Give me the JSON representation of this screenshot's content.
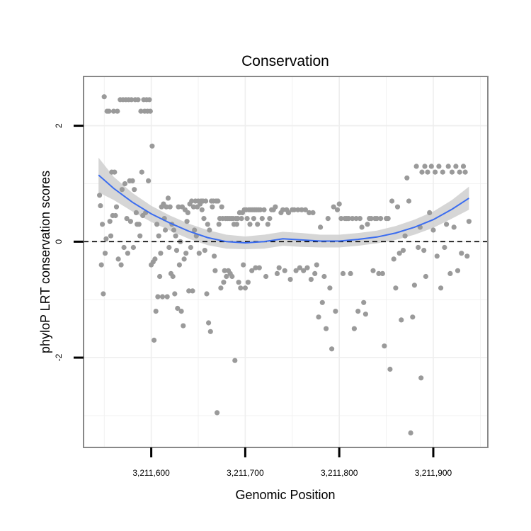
{
  "chart_data": {
    "type": "scatter",
    "title": "Conservation",
    "xlabel": "Genomic Position",
    "ylabel": "phyloP LRT conservation scores",
    "xlim": [
      3211528,
      3211958
    ],
    "ylim": [
      -3.55,
      2.85
    ],
    "x_ticks": [
      3211600,
      3211700,
      3211800,
      3211900
    ],
    "x_tick_labels": [
      "3,211,600",
      "3,211,700",
      "3,211,800",
      "3,211,900"
    ],
    "y_ticks": [
      -2,
      0,
      2
    ],
    "y_tick_labels": [
      "-2",
      "0",
      "2"
    ],
    "grid": true,
    "reference_line": {
      "y": 0,
      "style": "dashed"
    },
    "colors": {
      "points": "#9a9a9a",
      "smooth_line": "#3a6cf0",
      "ribbon": "#cfcfcf",
      "panel_border": "#888888",
      "grid": "#eeeeee"
    },
    "smooth_fit": {
      "x": [
        3211544,
        3211560,
        3211580,
        3211600,
        3211620,
        3211640,
        3211660,
        3211680,
        3211700,
        3211720,
        3211740,
        3211760,
        3211780,
        3211800,
        3211820,
        3211840,
        3211860,
        3211880,
        3211900,
        3211920,
        3211938
      ],
      "y": [
        1.15,
        0.92,
        0.68,
        0.48,
        0.32,
        0.18,
        0.07,
        0.0,
        -0.02,
        0.0,
        0.05,
        0.03,
        0.01,
        0.01,
        0.04,
        0.08,
        0.15,
        0.25,
        0.38,
        0.56,
        0.75
      ],
      "upper": [
        1.45,
        1.12,
        0.84,
        0.62,
        0.45,
        0.31,
        0.2,
        0.12,
        0.09,
        0.12,
        0.17,
        0.15,
        0.12,
        0.12,
        0.15,
        0.19,
        0.27,
        0.38,
        0.52,
        0.72,
        0.95
      ],
      "lower": [
        0.85,
        0.72,
        0.52,
        0.34,
        0.19,
        0.05,
        -0.06,
        -0.12,
        -0.13,
        -0.12,
        -0.07,
        -0.09,
        -0.1,
        -0.1,
        -0.07,
        -0.03,
        0.03,
        0.12,
        0.24,
        0.4,
        0.55
      ]
    },
    "points": [
      [
        3211545,
        0.8
      ],
      [
        3211546,
        0.62
      ],
      [
        3211547,
        -0.4
      ],
      [
        3211548,
        0.3
      ],
      [
        3211549,
        -0.9
      ],
      [
        3211550,
        2.5
      ],
      [
        3211551,
        -0.2
      ],
      [
        3211552,
        0.05
      ],
      [
        3211553,
        2.25
      ],
      [
        3211555,
        2.25
      ],
      [
        3211556,
        0.35
      ],
      [
        3211557,
        0.1
      ],
      [
        3211558,
        1.2
      ],
      [
        3211559,
        0.45
      ],
      [
        3211560,
        2.25
      ],
      [
        3211561,
        1.2
      ],
      [
        3211562,
        0.45
      ],
      [
        3211563,
        0.6
      ],
      [
        3211564,
        2.25
      ],
      [
        3211565,
        -0.3
      ],
      [
        3211567,
        2.45
      ],
      [
        3211568,
        -0.4
      ],
      [
        3211569,
        0.9
      ],
      [
        3211570,
        2.45
      ],
      [
        3211571,
        -0.1
      ],
      [
        3211572,
        1.0
      ],
      [
        3211573,
        2.45
      ],
      [
        3211574,
        0.4
      ],
      [
        3211575,
        -0.2
      ],
      [
        3211576,
        2.45
      ],
      [
        3211577,
        1.05
      ],
      [
        3211578,
        0.35
      ],
      [
        3211579,
        2.45
      ],
      [
        3211580,
        1.05
      ],
      [
        3211581,
        -0.1
      ],
      [
        3211582,
        0.9
      ],
      [
        3211583,
        2.45
      ],
      [
        3211584,
        0.5
      ],
      [
        3211585,
        0.3
      ],
      [
        3211586,
        2.45
      ],
      [
        3211587,
        0.3
      ],
      [
        3211588,
        0.1
      ],
      [
        3211589,
        2.25
      ],
      [
        3211590,
        1.2
      ],
      [
        3211591,
        0.45
      ],
      [
        3211592,
        2.45
      ],
      [
        3211593,
        2.25
      ],
      [
        3211594,
        0.5
      ],
      [
        3211595,
        2.45
      ],
      [
        3211596,
        2.25
      ],
      [
        3211597,
        1.05
      ],
      [
        3211598,
        2.45
      ],
      [
        3211599,
        2.25
      ],
      [
        3211600,
        -0.4
      ],
      [
        3211601,
        1.65
      ],
      [
        3211602,
        -0.35
      ],
      [
        3211603,
        -1.7
      ],
      [
        3211604,
        -0.3
      ],
      [
        3211605,
        -1.2
      ],
      [
        3211606,
        0.3
      ],
      [
        3211607,
        -0.95
      ],
      [
        3211608,
        0.1
      ],
      [
        3211609,
        -0.6
      ],
      [
        3211610,
        -0.2
      ],
      [
        3211611,
        0.6
      ],
      [
        3211612,
        -0.95
      ],
      [
        3211613,
        0.65
      ],
      [
        3211614,
        0.4
      ],
      [
        3211615,
        0.2
      ],
      [
        3211616,
        0.6
      ],
      [
        3211617,
        -0.95
      ],
      [
        3211618,
        0.75
      ],
      [
        3211619,
        -0.1
      ],
      [
        3211620,
        0.6
      ],
      [
        3211621,
        -0.55
      ],
      [
        3211622,
        0.3
      ],
      [
        3211623,
        -0.6
      ],
      [
        3211624,
        0.2
      ],
      [
        3211625,
        -0.9
      ],
      [
        3211626,
        0.1
      ],
      [
        3211627,
        -0.15
      ],
      [
        3211628,
        -1.15
      ],
      [
        3211629,
        0.6
      ],
      [
        3211630,
        -0.4
      ],
      [
        3211631,
        0.0
      ],
      [
        3211632,
        -1.2
      ],
      [
        3211633,
        0.6
      ],
      [
        3211634,
        -1.45
      ],
      [
        3211635,
        -0.3
      ],
      [
        3211636,
        0.55
      ],
      [
        3211637,
        -0.2
      ],
      [
        3211638,
        0.35
      ],
      [
        3211639,
        0.5
      ],
      [
        3211640,
        -0.85
      ],
      [
        3211641,
        0.65
      ],
      [
        3211642,
        -0.1
      ],
      [
        3211643,
        0.7
      ],
      [
        3211644,
        -0.85
      ],
      [
        3211645,
        0.6
      ],
      [
        3211646,
        0.2
      ],
      [
        3211647,
        0.7
      ],
      [
        3211648,
        0.1
      ],
      [
        3211649,
        0.6
      ],
      [
        3211650,
        0.7
      ],
      [
        3211651,
        -0.2
      ],
      [
        3211652,
        0.65
      ],
      [
        3211653,
        0.7
      ],
      [
        3211654,
        0.55
      ],
      [
        3211655,
        0.7
      ],
      [
        3211656,
        0.4
      ],
      [
        3211657,
        -0.15
      ],
      [
        3211658,
        0.7
      ],
      [
        3211659,
        -0.9
      ],
      [
        3211660,
        0.3
      ],
      [
        3211661,
        -1.4
      ],
      [
        3211662,
        0.2
      ],
      [
        3211663,
        -1.55
      ],
      [
        3211664,
        0.7
      ],
      [
        3211665,
        0.6
      ],
      [
        3211666,
        0.7
      ],
      [
        3211667,
        -0.25
      ],
      [
        3211668,
        -0.5
      ],
      [
        3211669,
        0.7
      ],
      [
        3211670,
        -2.95
      ],
      [
        3211671,
        0.7
      ],
      [
        3211672,
        0.3
      ],
      [
        3211673,
        0.4
      ],
      [
        3211674,
        -0.8
      ],
      [
        3211675,
        0.6
      ],
      [
        3211676,
        0.4
      ],
      [
        3211677,
        -0.7
      ],
      [
        3211678,
        -0.5
      ],
      [
        3211679,
        0.4
      ],
      [
        3211680,
        -0.6
      ],
      [
        3211681,
        0.4
      ],
      [
        3211682,
        -0.5
      ],
      [
        3211683,
        0.4
      ],
      [
        3211684,
        -0.55
      ],
      [
        3211685,
        0.4
      ],
      [
        3211686,
        -0.6
      ],
      [
        3211687,
        0.4
      ],
      [
        3211688,
        0.3
      ],
      [
        3211689,
        -2.05
      ],
      [
        3211690,
        0.4
      ],
      [
        3211691,
        0.3
      ],
      [
        3211692,
        0.4
      ],
      [
        3211693,
        -0.7
      ],
      [
        3211694,
        0.5
      ],
      [
        3211695,
        -0.8
      ],
      [
        3211696,
        0.4
      ],
      [
        3211697,
        0.5
      ],
      [
        3211698,
        -0.4
      ],
      [
        3211699,
        0.55
      ],
      [
        3211700,
        -0.8
      ],
      [
        3211701,
        0.55
      ],
      [
        3211702,
        0.4
      ],
      [
        3211703,
        -0.7
      ],
      [
        3211704,
        0.55
      ],
      [
        3211705,
        0.3
      ],
      [
        3211706,
        0.55
      ],
      [
        3211707,
        -0.5
      ],
      [
        3211708,
        0.55
      ],
      [
        3211709,
        0.4
      ],
      [
        3211710,
        0.55
      ],
      [
        3211711,
        -0.45
      ],
      [
        3211712,
        0.55
      ],
      [
        3211713,
        0.3
      ],
      [
        3211714,
        0.55
      ],
      [
        3211715,
        -0.45
      ],
      [
        3211716,
        0.55
      ],
      [
        3211718,
        0.4
      ],
      [
        3211720,
        0.55
      ],
      [
        3211722,
        -0.6
      ],
      [
        3211724,
        0.3
      ],
      [
        3211726,
        0.4
      ],
      [
        3211728,
        0.55
      ],
      [
        3211730,
        0.55
      ],
      [
        3211732,
        0.6
      ],
      [
        3211734,
        -0.55
      ],
      [
        3211736,
        -0.45
      ],
      [
        3211738,
        0.5
      ],
      [
        3211740,
        0.55
      ],
      [
        3211742,
        -0.5
      ],
      [
        3211744,
        0.55
      ],
      [
        3211746,
        0.5
      ],
      [
        3211748,
        -0.65
      ],
      [
        3211750,
        0.55
      ],
      [
        3211752,
        0.55
      ],
      [
        3211754,
        -0.5
      ],
      [
        3211756,
        0.55
      ],
      [
        3211758,
        -0.45
      ],
      [
        3211760,
        0.55
      ],
      [
        3211762,
        -0.5
      ],
      [
        3211764,
        0.55
      ],
      [
        3211766,
        -0.45
      ],
      [
        3211768,
        0.5
      ],
      [
        3211770,
        -0.65
      ],
      [
        3211772,
        0.5
      ],
      [
        3211774,
        -0.55
      ],
      [
        3211776,
        -0.4
      ],
      [
        3211778,
        -1.3
      ],
      [
        3211780,
        0.25
      ],
      [
        3211782,
        -1.05
      ],
      [
        3211784,
        -0.6
      ],
      [
        3211786,
        -1.5
      ],
      [
        3211788,
        0.4
      ],
      [
        3211790,
        -0.8
      ],
      [
        3211792,
        -1.85
      ],
      [
        3211794,
        0.6
      ],
      [
        3211796,
        -1.2
      ],
      [
        3211798,
        0.55
      ],
      [
        3211800,
        0.65
      ],
      [
        3211802,
        0.4
      ],
      [
        3211804,
        -0.55
      ],
      [
        3211806,
        0.4
      ],
      [
        3211808,
        0.4
      ],
      [
        3211810,
        0.4
      ],
      [
        3211812,
        -0.55
      ],
      [
        3211814,
        0.4
      ],
      [
        3211816,
        -1.5
      ],
      [
        3211818,
        0.4
      ],
      [
        3211820,
        -1.2
      ],
      [
        3211822,
        0.4
      ],
      [
        3211824,
        0.25
      ],
      [
        3211826,
        -1.05
      ],
      [
        3211828,
        -1.25
      ],
      [
        3211830,
        0.3
      ],
      [
        3211832,
        0.4
      ],
      [
        3211834,
        0.4
      ],
      [
        3211836,
        -0.5
      ],
      [
        3211838,
        0.4
      ],
      [
        3211840,
        0.4
      ],
      [
        3211842,
        -0.55
      ],
      [
        3211844,
        0.4
      ],
      [
        3211846,
        -0.55
      ],
      [
        3211848,
        -1.8
      ],
      [
        3211850,
        0.4
      ],
      [
        3211852,
        0.4
      ],
      [
        3211854,
        -2.2
      ],
      [
        3211856,
        0.7
      ],
      [
        3211858,
        -0.3
      ],
      [
        3211860,
        -0.8
      ],
      [
        3211862,
        0.6
      ],
      [
        3211864,
        -0.2
      ],
      [
        3211866,
        -1.35
      ],
      [
        3211868,
        -0.15
      ],
      [
        3211870,
        0.1
      ],
      [
        3211872,
        1.1
      ],
      [
        3211874,
        0.7
      ],
      [
        3211876,
        -3.3
      ],
      [
        3211878,
        -1.3
      ],
      [
        3211880,
        -0.75
      ],
      [
        3211882,
        1.3
      ],
      [
        3211884,
        -0.1
      ],
      [
        3211886,
        0.25
      ],
      [
        3211887,
        -2.35
      ],
      [
        3211888,
        1.2
      ],
      [
        3211890,
        -0.15
      ],
      [
        3211891,
        1.3
      ],
      [
        3211892,
        -0.6
      ],
      [
        3211894,
        1.2
      ],
      [
        3211896,
        0.5
      ],
      [
        3211898,
        1.3
      ],
      [
        3211900,
        0.2
      ],
      [
        3211902,
        1.2
      ],
      [
        3211904,
        -0.25
      ],
      [
        3211906,
        1.3
      ],
      [
        3211908,
        -0.8
      ],
      [
        3211910,
        1.2
      ],
      [
        3211912,
        -0.1
      ],
      [
        3211914,
        0.3
      ],
      [
        3211916,
        1.3
      ],
      [
        3211918,
        -0.55
      ],
      [
        3211920,
        1.2
      ],
      [
        3211922,
        0.25
      ],
      [
        3211924,
        1.3
      ],
      [
        3211926,
        -0.5
      ],
      [
        3211928,
        1.2
      ],
      [
        3211930,
        -0.2
      ],
      [
        3211932,
        1.3
      ],
      [
        3211934,
        1.2
      ],
      [
        3211936,
        -0.25
      ],
      [
        3211938,
        0.35
      ]
    ]
  }
}
